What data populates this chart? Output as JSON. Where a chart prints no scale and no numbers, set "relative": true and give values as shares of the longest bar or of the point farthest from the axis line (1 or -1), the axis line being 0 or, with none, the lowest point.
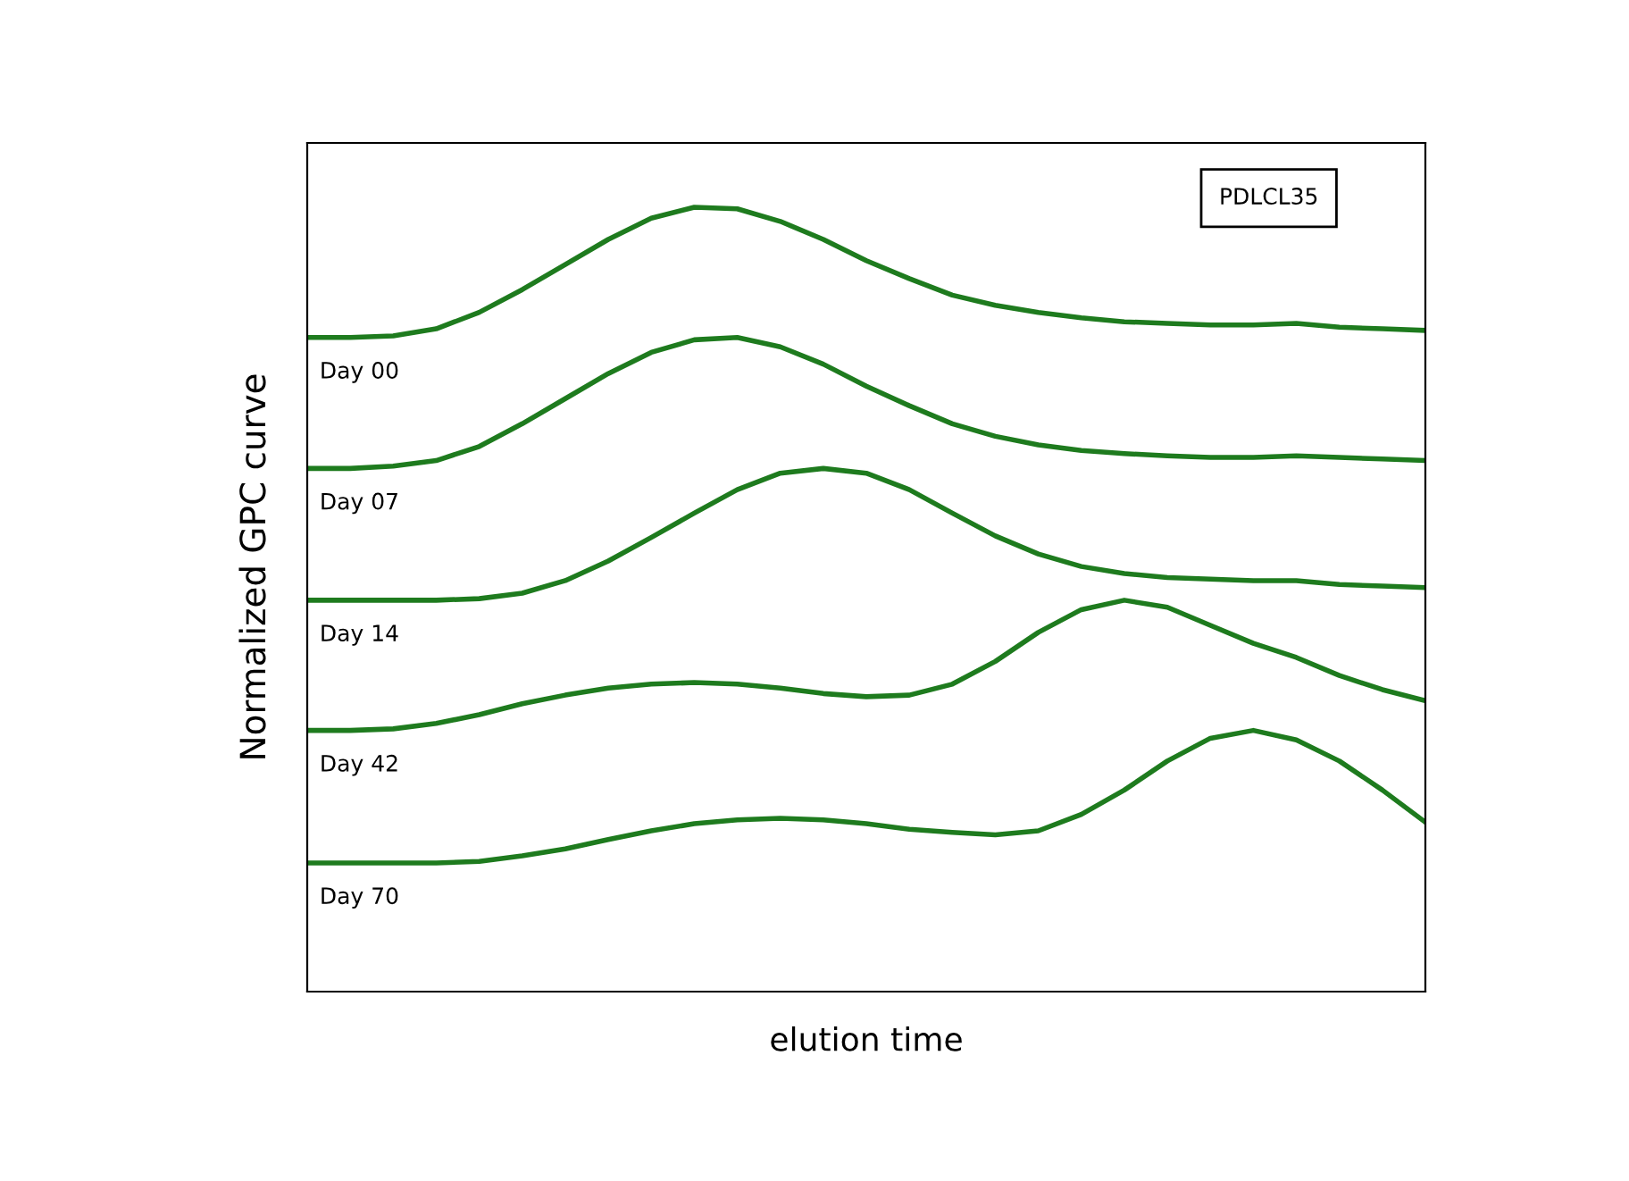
{
  "chart_data": {
    "type": "line",
    "relative": true,
    "xlabel": "elution time",
    "ylabel": "Normalized GPC curve",
    "annotations": [
      "PDLCL35"
    ],
    "legend": false,
    "categories": [
      null,
      null,
      null,
      null,
      null,
      null,
      null,
      null,
      null,
      null,
      null,
      null,
      null,
      null,
      null,
      null,
      null,
      null,
      null,
      null,
      null,
      null,
      null,
      null,
      null,
      null,
      null
    ],
    "series": [
      {
        "name": "Day 00",
        "color": "#1e7b1e",
        "values": [
          0.834,
          0.834,
          0.836,
          0.845,
          0.866,
          0.895,
          0.927,
          0.959,
          0.986,
          1.0,
          0.998,
          0.982,
          0.959,
          0.932,
          0.909,
          0.888,
          0.875,
          0.866,
          0.859,
          0.854,
          0.852,
          0.85,
          0.85,
          0.852,
          0.847,
          0.845,
          0.843
        ]
      },
      {
        "name": "Day 07",
        "color": "#1e7b1e",
        "values": [
          0.667,
          0.667,
          0.67,
          0.677,
          0.695,
          0.724,
          0.756,
          0.788,
          0.815,
          0.831,
          0.834,
          0.822,
          0.8,
          0.772,
          0.747,
          0.724,
          0.708,
          0.697,
          0.69,
          0.686,
          0.683,
          0.681,
          0.681,
          0.683,
          0.681,
          0.679,
          0.677
        ]
      },
      {
        "name": "Day 14",
        "color": "#1e7b1e",
        "values": [
          0.499,
          0.499,
          0.499,
          0.499,
          0.501,
          0.508,
          0.524,
          0.549,
          0.579,
          0.61,
          0.64,
          0.661,
          0.667,
          0.661,
          0.64,
          0.61,
          0.581,
          0.558,
          0.542,
          0.533,
          0.528,
          0.526,
          0.524,
          0.524,
          0.519,
          0.517,
          0.515
        ]
      },
      {
        "name": "Day 42",
        "color": "#1e7b1e",
        "values": [
          0.333,
          0.333,
          0.335,
          0.342,
          0.353,
          0.367,
          0.378,
          0.387,
          0.392,
          0.394,
          0.392,
          0.387,
          0.38,
          0.376,
          0.378,
          0.392,
          0.421,
          0.458,
          0.487,
          0.499,
          0.49,
          0.467,
          0.444,
          0.426,
          0.403,
          0.385,
          0.371
        ]
      },
      {
        "name": "Day 70",
        "color": "#1e7b1e",
        "values": [
          0.164,
          0.164,
          0.164,
          0.164,
          0.166,
          0.173,
          0.182,
          0.194,
          0.205,
          0.214,
          0.219,
          0.221,
          0.219,
          0.214,
          0.207,
          0.203,
          0.2,
          0.205,
          0.226,
          0.257,
          0.294,
          0.323,
          0.333,
          0.321,
          0.294,
          0.257,
          0.216
        ]
      }
    ]
  }
}
